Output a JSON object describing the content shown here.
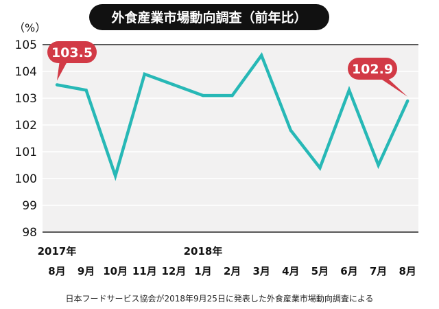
{
  "title": "外食産業市場動向調査（前年比）",
  "source": "日本フードサービス協会が2018年9月25日に発表した外食産業市場動向調査による",
  "colors": {
    "line": "#27b8b6",
    "callout": "#d23a46",
    "plot_bg": "#f2f1f1",
    "title_bg": "#111111"
  },
  "chart_data": {
    "type": "line",
    "unit_label": "（%）",
    "ylim": [
      98,
      105
    ],
    "yticks": [
      98,
      99,
      100,
      101,
      102,
      103,
      104,
      105
    ],
    "categories": [
      "8月",
      "9月",
      "10月",
      "11月",
      "12月",
      "1月",
      "2月",
      "3月",
      "4月",
      "5月",
      "6月",
      "7月",
      "8月"
    ],
    "year_labels": [
      {
        "index": 0,
        "text": "2017年"
      },
      {
        "index": 5,
        "text": "2018年"
      }
    ],
    "series": [
      {
        "values": [
          103.5,
          103.3,
          100.1,
          103.9,
          103.5,
          103.1,
          103.1,
          104.6,
          101.8,
          100.4,
          103.3,
          100.5,
          102.9
        ]
      }
    ],
    "annotations": [
      {
        "index": 0,
        "text": "103.5"
      },
      {
        "index": 12,
        "text": "102.9"
      }
    ],
    "grid": true
  }
}
